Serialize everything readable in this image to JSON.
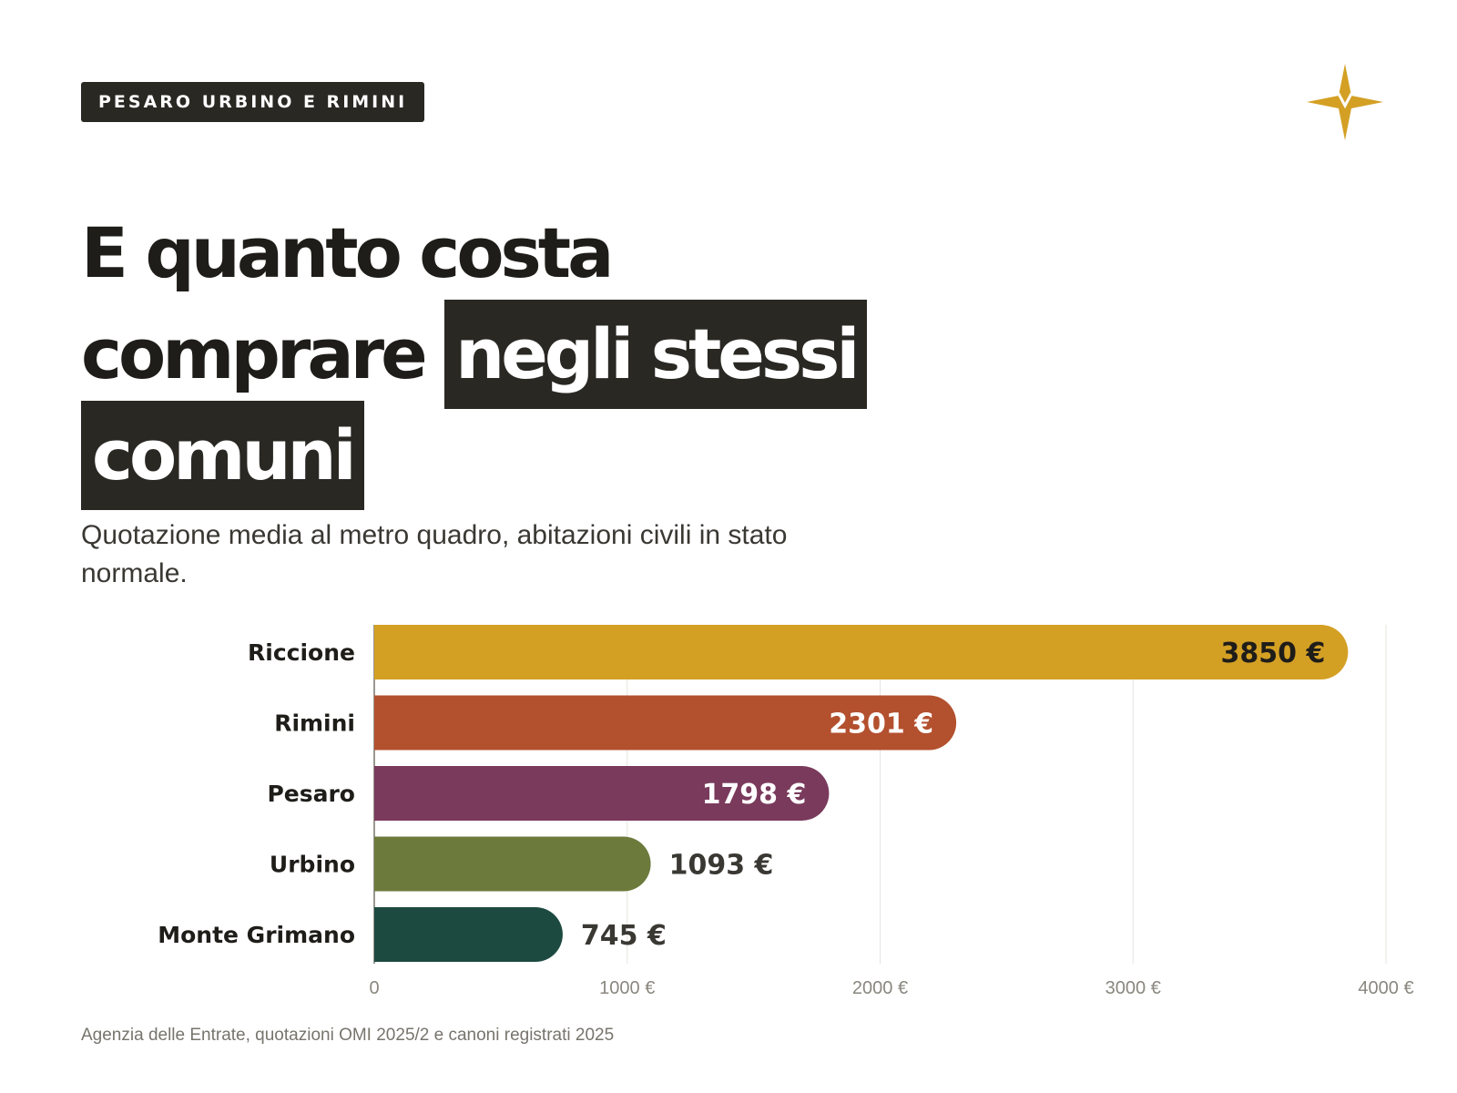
{
  "tag": "PESARO URBINO E RIMINI",
  "headline": {
    "line1": "E quanto costa",
    "line2a": "comprare",
    "line2b": "negli stessi",
    "line3": "comuni"
  },
  "subtitle": "Quotazione media al metro quadro, abitazioni civili in stato normale.",
  "source": "Agenzia delle Entrate, quotazioni OMI 2025/2 e canoni registrati 2025",
  "icons": {
    "logo": "four-point-star-icon",
    "logo_color": "#d4a024"
  },
  "chart_data": {
    "type": "bar",
    "orientation": "horizontal",
    "categories": [
      "Riccione",
      "Rimini",
      "Pesaro",
      "Urbino",
      "Monte Grimano"
    ],
    "values": [
      3850,
      2301,
      1798,
      1093,
      745
    ],
    "value_labels": [
      "3850 €",
      "2301 €",
      "1798 €",
      "1093 €",
      "745 €"
    ],
    "colors": [
      "#d4a024",
      "#b3502e",
      "#7a3a5c",
      "#6c7a3c",
      "#1d4a40"
    ],
    "label_inside": [
      true,
      true,
      true,
      false,
      false
    ],
    "xlim": [
      0,
      4000
    ],
    "xticks": [
      0,
      1000,
      2000,
      3000,
      4000
    ],
    "xtick_labels": [
      "0",
      "1000 €",
      "2000 €",
      "3000 €",
      "4000 €"
    ],
    "grid": true,
    "title": "",
    "xlabel": "",
    "ylabel": ""
  }
}
